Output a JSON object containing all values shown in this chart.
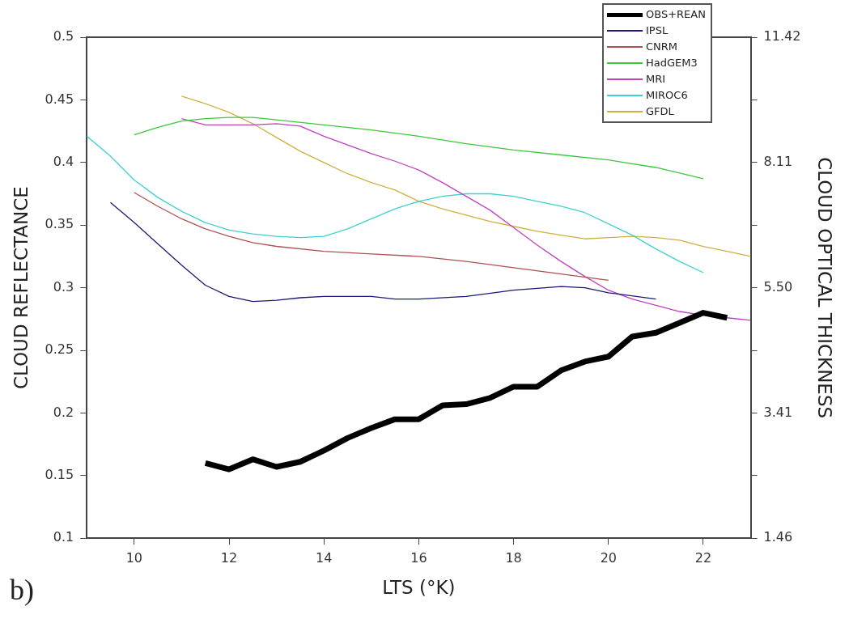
{
  "chart_data": {
    "type": "line",
    "xlabel": "LTS (°K)",
    "ylabel": "CLOUD REFLECTANCE",
    "y2label": "CLOUD OPTICAL THICKNESS",
    "annotations": [
      "b)"
    ],
    "xlim": [
      9,
      23
    ],
    "xticks": [
      10,
      12,
      14,
      16,
      18,
      20,
      22
    ],
    "ylim": [
      0.1,
      0.5
    ],
    "yticks": [
      0.1,
      0.15,
      0.2,
      0.25,
      0.3,
      0.35,
      0.4,
      0.45,
      0.5
    ],
    "y2_categories": [
      "11.42",
      null,
      "8.11",
      null,
      "5.50",
      null,
      "3.41",
      null,
      "1.46"
    ],
    "legend": "top right",
    "marker": "none",
    "line_style": "solid",
    "series": [
      {
        "name": "OBS+REAN",
        "color": "#000000",
        "x": [
          11.5,
          12,
          12.5,
          13,
          13.5,
          14,
          14.5,
          15,
          15.5,
          16,
          16.5,
          17,
          17.5,
          18,
          18.5,
          19,
          19.5,
          20,
          20.5,
          21,
          21.5,
          22,
          22.5
        ],
        "values": [
          0.16,
          0.155,
          0.163,
          0.157,
          0.161,
          0.17,
          0.18,
          0.188,
          0.195,
          0.195,
          0.206,
          0.207,
          0.212,
          0.221,
          0.221,
          0.234,
          0.241,
          0.245,
          0.261,
          0.264,
          0.272,
          0.28,
          0.276
        ]
      },
      {
        "name": "IPSL",
        "color": "#1a1a7a",
        "x": [
          9.5,
          10,
          10.5,
          11,
          11.5,
          12,
          12.5,
          13,
          13.5,
          14,
          15,
          15.5,
          16,
          17,
          18,
          19,
          19.5,
          20,
          21
        ],
        "values": [
          0.368,
          0.352,
          0.335,
          0.318,
          0.302,
          0.293,
          0.289,
          0.29,
          0.292,
          0.293,
          0.293,
          0.291,
          0.291,
          0.293,
          0.298,
          0.301,
          0.3,
          0.296,
          0.291
        ]
      },
      {
        "name": "CNRM",
        "color": "#b05050",
        "x": [
          10,
          10.5,
          11,
          11.5,
          12,
          12.5,
          13,
          14,
          15,
          16,
          17,
          18,
          19,
          20
        ],
        "values": [
          0.376,
          0.365,
          0.355,
          0.347,
          0.341,
          0.336,
          0.333,
          0.329,
          0.327,
          0.325,
          0.321,
          0.316,
          0.311,
          0.306
        ]
      },
      {
        "name": "HadGEM3",
        "color": "#3cc83c",
        "x": [
          10,
          10.5,
          11,
          11.5,
          12,
          12.5,
          13,
          14,
          15,
          16,
          17,
          18,
          19,
          20,
          21,
          22
        ],
        "values": [
          0.422,
          0.428,
          0.433,
          0.435,
          0.436,
          0.436,
          0.434,
          0.43,
          0.426,
          0.421,
          0.415,
          0.41,
          0.406,
          0.402,
          0.396,
          0.387
        ]
      },
      {
        "name": "MRI",
        "color": "#c040c0",
        "x": [
          11,
          11.5,
          12,
          12.5,
          13,
          13.5,
          14,
          14.5,
          15,
          15.5,
          16,
          16.5,
          17,
          17.5,
          18,
          18.5,
          19,
          19.5,
          20,
          20.5,
          21,
          21.5,
          22,
          22.5,
          23
        ],
        "values": [
          0.435,
          0.43,
          0.43,
          0.43,
          0.431,
          0.429,
          0.421,
          0.414,
          0.407,
          0.401,
          0.394,
          0.384,
          0.373,
          0.362,
          0.348,
          0.334,
          0.321,
          0.309,
          0.298,
          0.291,
          0.286,
          0.281,
          0.278,
          0.276,
          0.274
        ]
      },
      {
        "name": "MIROC6",
        "color": "#40d0d0",
        "x": [
          9,
          9.5,
          10,
          10.5,
          11,
          11.5,
          12,
          12.5,
          13,
          13.5,
          14,
          14.5,
          15,
          15.5,
          16,
          16.5,
          17,
          17.5,
          18,
          18.5,
          19,
          19.5,
          20,
          20.5,
          21,
          21.5,
          22
        ],
        "values": [
          0.421,
          0.405,
          0.386,
          0.372,
          0.361,
          0.352,
          0.346,
          0.343,
          0.341,
          0.34,
          0.341,
          0.347,
          0.355,
          0.363,
          0.369,
          0.373,
          0.375,
          0.375,
          0.373,
          0.369,
          0.365,
          0.36,
          0.351,
          0.342,
          0.331,
          0.321,
          0.312
        ]
      },
      {
        "name": "GFDL",
        "color": "#d0b040",
        "x": [
          11,
          11.5,
          12,
          12.5,
          13,
          13.5,
          14,
          14.5,
          15,
          15.5,
          16,
          16.5,
          17,
          17.5,
          18,
          18.5,
          19,
          19.5,
          20,
          20.5,
          21,
          21.5,
          22,
          22.5,
          23
        ],
        "values": [
          0.453,
          0.447,
          0.44,
          0.431,
          0.42,
          0.409,
          0.4,
          0.391,
          0.384,
          0.378,
          0.369,
          0.363,
          0.358,
          0.353,
          0.349,
          0.345,
          0.342,
          0.339,
          0.34,
          0.341,
          0.34,
          0.338,
          0.333,
          0.329,
          0.325
        ]
      }
    ]
  }
}
